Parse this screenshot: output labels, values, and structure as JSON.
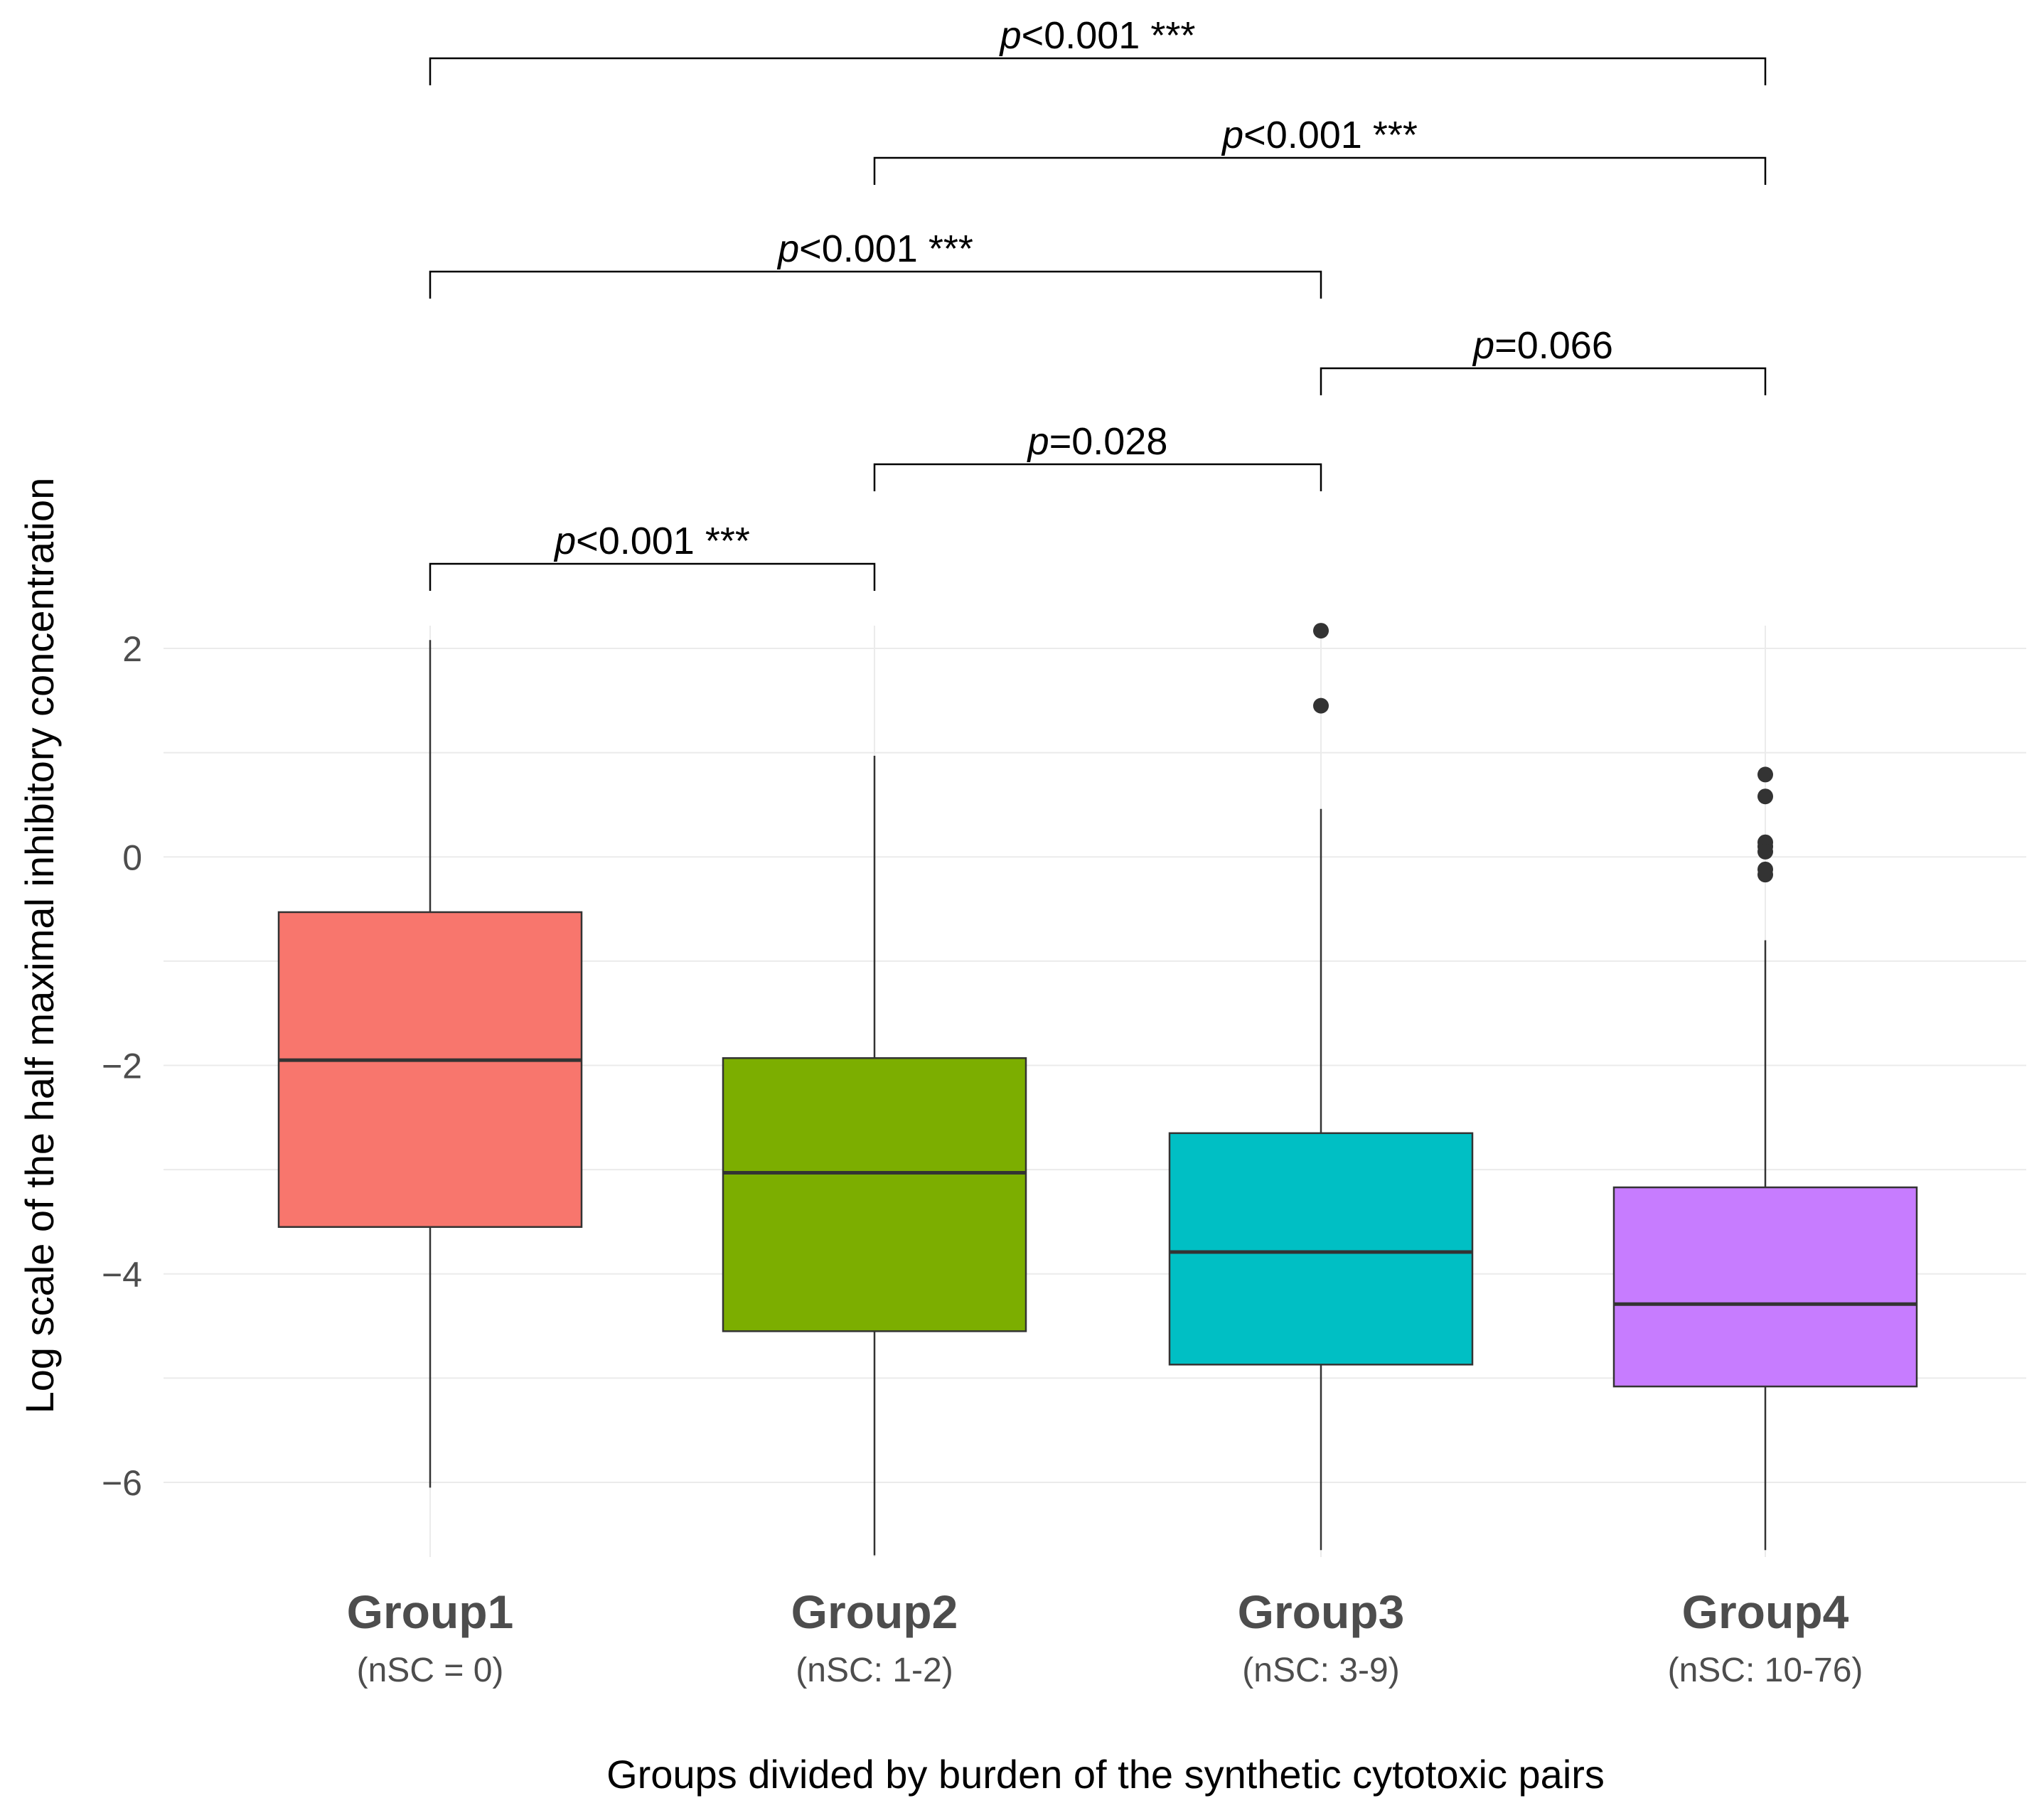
{
  "chart_data": {
    "type": "boxplot",
    "title": "",
    "xlabel": "Groups divided by burden of the synthetic cytotoxic pairs",
    "ylabel": "Log scale of the half maximal inhibitory concentration",
    "ylim": [
      -6.7,
      2.2
    ],
    "yticks": [
      2,
      0,
      -2,
      -4,
      -6
    ],
    "yticks_labels": [
      "2",
      "0",
      "−2",
      "−4",
      "−6"
    ],
    "grid": true,
    "categories": [
      "Group1",
      "Group2",
      "Group3",
      "Group4"
    ],
    "category_sublabels": [
      "(nSC = 0)",
      "(nSC: 1-2)",
      "(nSC: 3-9)",
      "(nSC: 10-76)"
    ],
    "boxes": [
      {
        "name": "Group1",
        "color": "#F8766D",
        "q1": -3.55,
        "median": -1.95,
        "q3": -0.53,
        "whisker_low": -6.05,
        "whisker_high": 2.08,
        "outliers": []
      },
      {
        "name": "Group2",
        "color": "#7CAE00",
        "q1": -4.55,
        "median": -3.03,
        "q3": -1.93,
        "whisker_low": -6.7,
        "whisker_high": 0.97,
        "outliers": []
      },
      {
        "name": "Group3",
        "color": "#00BFC4",
        "q1": -4.87,
        "median": -3.79,
        "q3": -2.65,
        "whisker_low": -6.65,
        "whisker_high": 0.46,
        "outliers": [
          2.17,
          1.45
        ]
      },
      {
        "name": "Group4",
        "color": "#C77CFF",
        "q1": -5.08,
        "median": -4.29,
        "q3": -3.17,
        "whisker_low": -6.65,
        "whisker_high": -0.8,
        "outliers": [
          0.79,
          0.58,
          0.14,
          0.1,
          0.05,
          -0.12,
          -0.17
        ]
      }
    ],
    "comparisons": [
      {
        "from": 0,
        "to": 3,
        "label_p": "p",
        "label_rest": "<0.001 ***",
        "level": 6
      },
      {
        "from": 1,
        "to": 3,
        "label_p": "p",
        "label_rest": "<0.001 ***",
        "level": 5
      },
      {
        "from": 0,
        "to": 2,
        "label_p": "p",
        "label_rest": "<0.001 ***",
        "level": 4
      },
      {
        "from": 2,
        "to": 3,
        "label_p": "p",
        "label_rest": "=0.066",
        "level": 3
      },
      {
        "from": 1,
        "to": 2,
        "label_p": "p",
        "label_rest": "=0.028",
        "level": 2
      },
      {
        "from": 0,
        "to": 1,
        "label_p": "p",
        "label_rest": "<0.001 ***",
        "level": 1
      }
    ]
  }
}
